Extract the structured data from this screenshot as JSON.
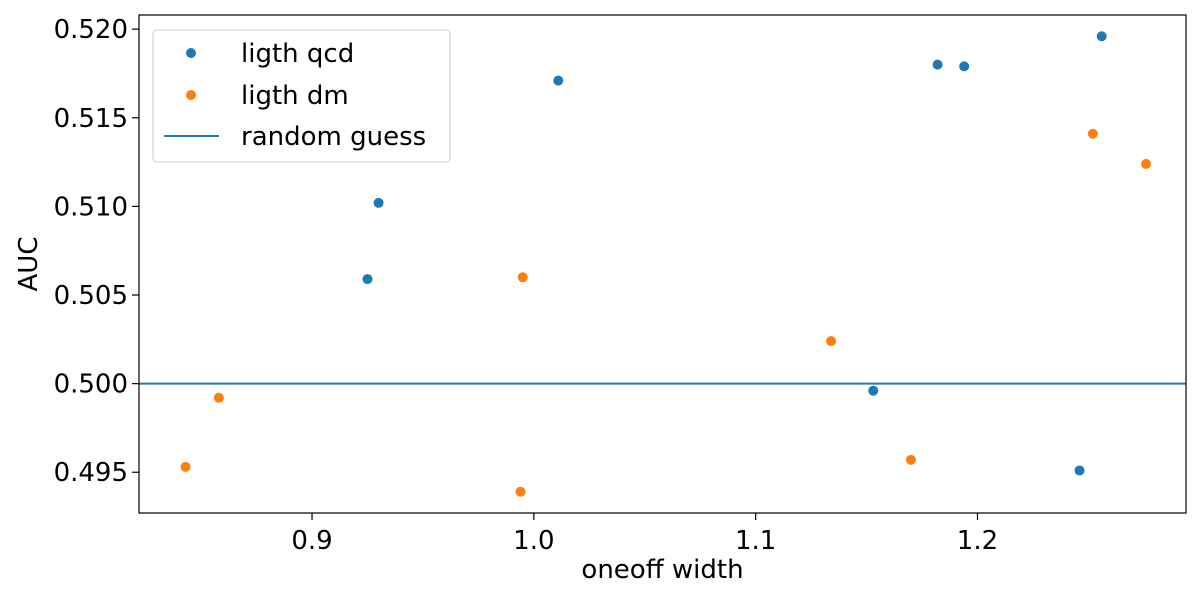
{
  "chart_data": {
    "type": "scatter",
    "title": "",
    "xlabel": "oneoff width",
    "ylabel": "AUC",
    "xlim": [
      0.822,
      1.294
    ],
    "ylim": [
      0.4927,
      0.5208
    ],
    "xticks": [
      0.9,
      1.0,
      1.1,
      1.2
    ],
    "xtick_labels": [
      "0.9",
      "1.0",
      "1.1",
      "1.2"
    ],
    "yticks": [
      0.495,
      0.5,
      0.505,
      0.51,
      0.515,
      0.52
    ],
    "ytick_labels": [
      "0.495",
      "0.500",
      "0.505",
      "0.510",
      "0.515",
      "0.520"
    ],
    "grid": false,
    "legend_position": "top-left",
    "series": [
      {
        "name": "ligth qcd",
        "color": "#1f77b4",
        "marker": "circle",
        "points": [
          {
            "x": 0.925,
            "y": 0.5059
          },
          {
            "x": 0.93,
            "y": 0.5102
          },
          {
            "x": 1.011,
            "y": 0.5171
          },
          {
            "x": 1.153,
            "y": 0.4996
          },
          {
            "x": 1.182,
            "y": 0.518
          },
          {
            "x": 1.194,
            "y": 0.5179
          },
          {
            "x": 1.246,
            "y": 0.4951
          },
          {
            "x": 1.256,
            "y": 0.5196
          }
        ]
      },
      {
        "name": "ligth dm",
        "color": "#ff7f0e",
        "marker": "circle",
        "points": [
          {
            "x": 0.843,
            "y": 0.4953
          },
          {
            "x": 0.858,
            "y": 0.4992
          },
          {
            "x": 0.994,
            "y": 0.4939
          },
          {
            "x": 0.995,
            "y": 0.506
          },
          {
            "x": 1.134,
            "y": 0.5024
          },
          {
            "x": 1.17,
            "y": 0.4957
          },
          {
            "x": 1.252,
            "y": 0.5141
          },
          {
            "x": 1.276,
            "y": 0.5124
          }
        ]
      }
    ],
    "reference_line": {
      "name": "random guess",
      "orientation": "horizontal",
      "y": 0.5,
      "color": "#1f77b4"
    }
  }
}
